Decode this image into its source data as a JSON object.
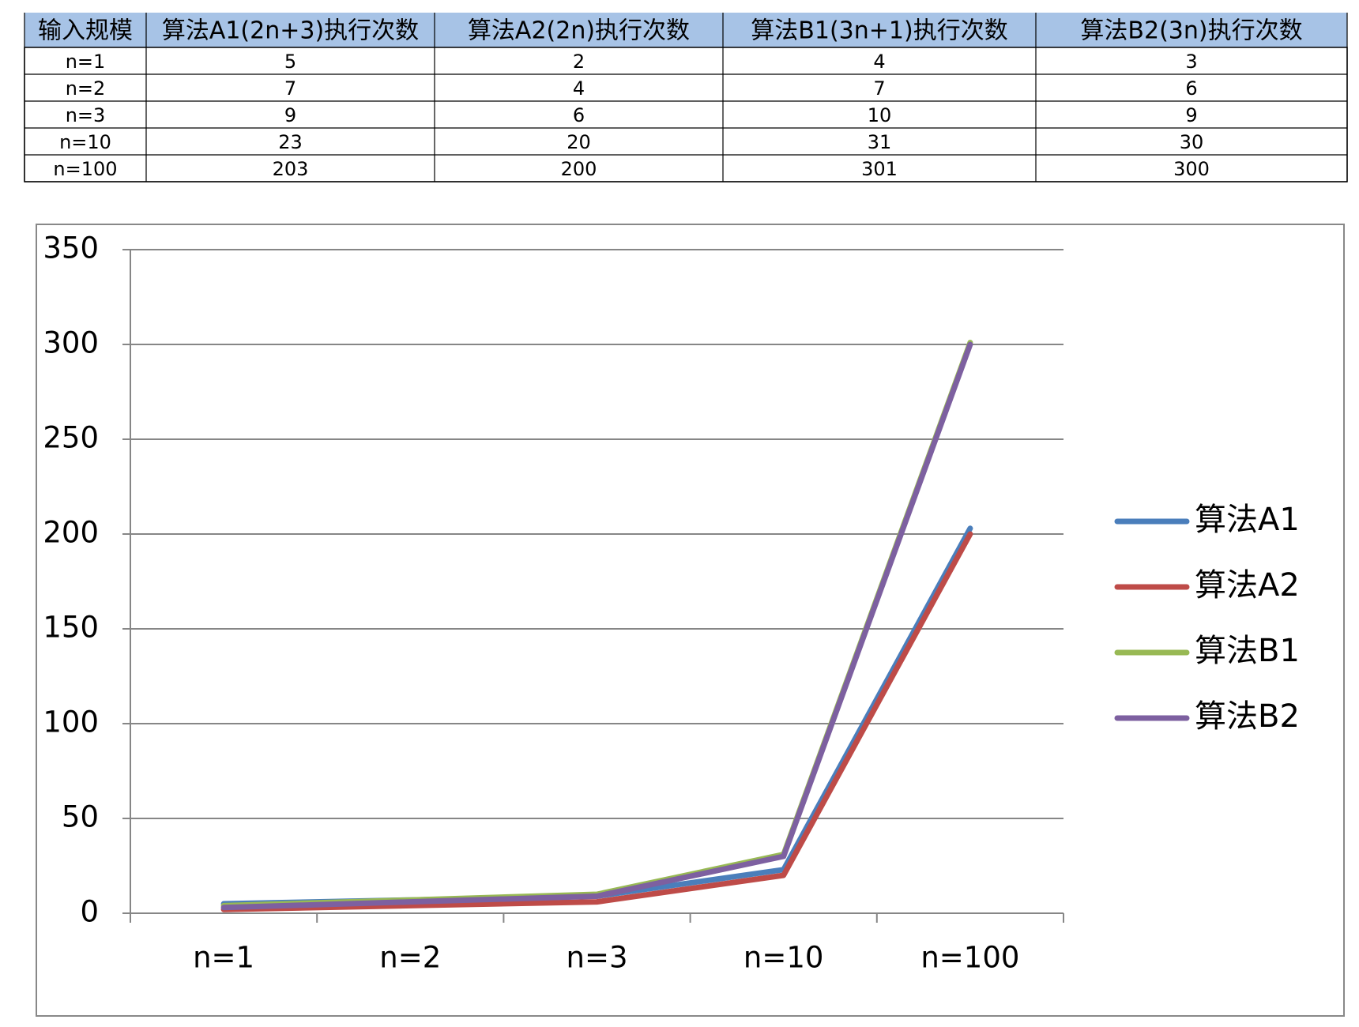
{
  "table": {
    "header": [
      "输入规模",
      "算法A1(2n+3)执行次数",
      "算法A2(2n)执行次数",
      "算法B1(3n+1)执行次数",
      "算法B2(3n)执行次数"
    ],
    "rows": [
      [
        "n=1",
        "5",
        "2",
        "4",
        "3"
      ],
      [
        "n=2",
        "7",
        "4",
        "7",
        "6"
      ],
      [
        "n=3",
        "9",
        "6",
        "10",
        "9"
      ],
      [
        "n=10",
        "23",
        "20",
        "31",
        "30"
      ],
      [
        "n=100",
        "203",
        "200",
        "301",
        "300"
      ]
    ]
  },
  "chart_data": {
    "type": "line",
    "categories": [
      "n=1",
      "n=2",
      "n=3",
      "n=10",
      "n=100"
    ],
    "series": [
      {
        "name": "算法A1",
        "color": "#4a7ebb",
        "values": [
          5,
          7,
          9,
          23,
          203
        ]
      },
      {
        "name": "算法A2",
        "color": "#be4b48",
        "values": [
          2,
          4,
          6,
          20,
          200
        ]
      },
      {
        "name": "算法B1",
        "color": "#98b954",
        "values": [
          4,
          7,
          10,
          31,
          301
        ]
      },
      {
        "name": "算法B2",
        "color": "#7d60a0",
        "values": [
          3,
          6,
          9,
          30,
          300
        ]
      }
    ],
    "ylim": [
      0,
      350
    ],
    "yticks": [
      0,
      50,
      100,
      150,
      200,
      250,
      300,
      350
    ],
    "grid": true,
    "legend": "right"
  }
}
